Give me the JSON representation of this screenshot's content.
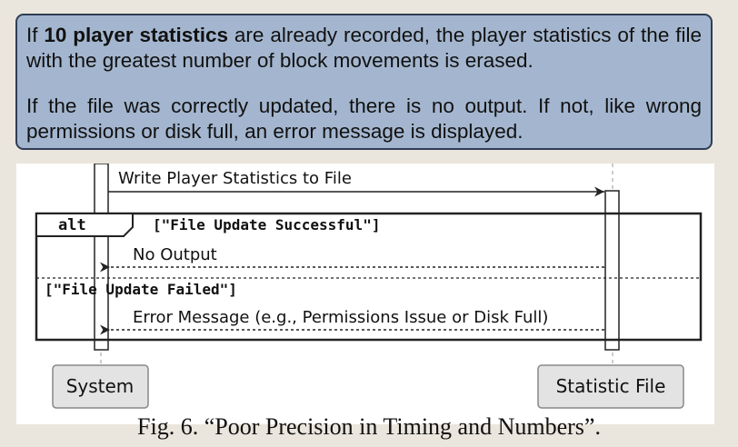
{
  "note": {
    "p1_prefix": "If ",
    "p1_bold": "10 player statistics",
    "p1_rest": " are already recorded, the player statistics of the file with the greatest number of block movements is erased.",
    "p2": "If the file was correctly updated, there is no output. If not, like wrong permissions or disk full, an error message is displayed."
  },
  "diagram": {
    "participants": {
      "system": "System",
      "file": "Statistic File"
    },
    "messages": {
      "write": "Write Player Statistics to File",
      "no_output": "No Output",
      "error": "Error Message (e.g., Permissions Issue or Disk Full)"
    },
    "alt": {
      "keyword": "alt",
      "guard1": "[\"File Update Successful\"]",
      "guard2": "[\"File Update Failed\"]"
    }
  },
  "caption": "Fig. 6.  “Poor Precision in Timing and Numbers”."
}
